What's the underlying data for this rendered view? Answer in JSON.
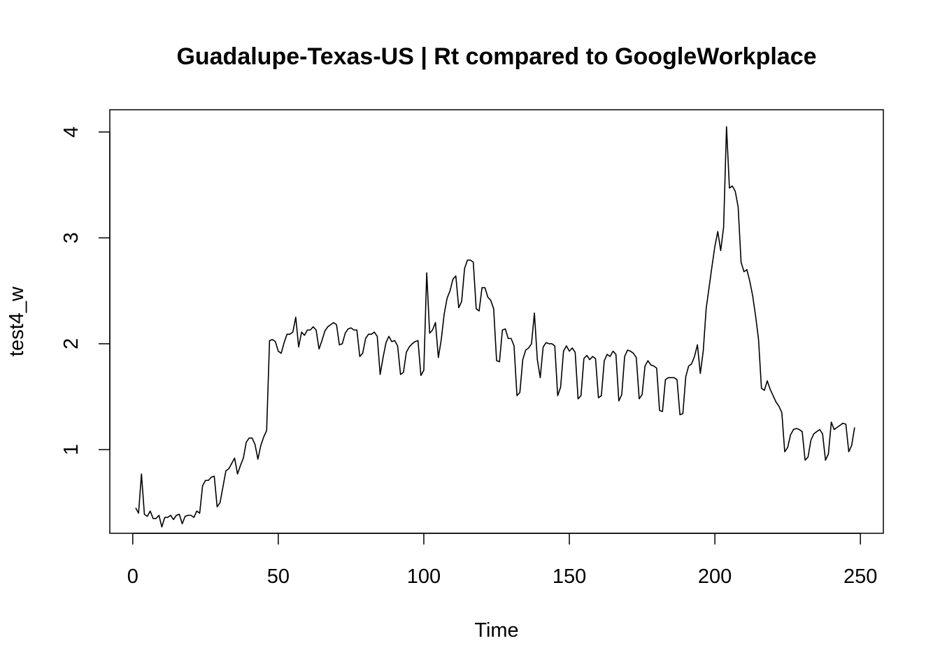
{
  "chart_data": {
    "type": "line",
    "title": "Guadalupe-Texas-US | Rt compared to GoogleWorkplace",
    "xlabel": "Time",
    "ylabel": "test4_w",
    "xlim": [
      -7.88,
      257.88
    ],
    "ylim": [
      0.21,
      4.21
    ],
    "xticks": [
      0,
      50,
      100,
      150,
      200,
      250
    ],
    "yticks": [
      1,
      2,
      3,
      4
    ],
    "xtick_labels": [
      "0",
      "50",
      "100",
      "150",
      "200",
      "250"
    ],
    "ytick_labels": [
      "1",
      "2",
      "3",
      "4"
    ],
    "grid": false,
    "legend": "none",
    "line_color": "#000000",
    "series": [
      {
        "x": [
          1,
          2,
          3,
          4,
          5,
          6,
          7,
          8,
          9,
          10,
          11,
          12,
          13,
          14,
          15,
          16,
          17,
          18,
          19,
          20,
          21,
          22,
          23,
          24,
          25,
          26,
          27,
          28,
          29,
          30,
          31,
          32,
          33,
          34,
          35,
          36,
          37,
          38,
          39,
          40,
          41,
          42,
          43,
          44,
          45,
          46,
          47,
          48,
          49,
          50,
          51,
          52,
          53,
          54,
          55,
          56,
          57,
          58,
          59,
          60,
          61,
          62,
          63,
          64,
          65,
          66,
          67,
          68,
          69,
          70,
          71,
          72,
          73,
          74,
          75,
          76,
          77,
          78,
          79,
          80,
          81,
          82,
          83,
          84,
          85,
          86,
          87,
          88,
          89,
          90,
          91,
          92,
          93,
          94,
          95,
          96,
          97,
          98,
          99,
          100,
          101,
          102,
          103,
          104,
          105,
          106,
          107,
          108,
          109,
          110,
          111,
          112,
          113,
          114,
          115,
          116,
          117,
          118,
          119,
          120,
          121,
          122,
          123,
          124,
          125,
          126,
          127,
          128,
          129,
          130,
          131,
          132,
          133,
          134,
          135,
          136,
          137,
          138,
          139,
          140,
          141,
          142,
          143,
          144,
          145,
          146,
          147,
          148,
          149,
          150,
          151,
          152,
          153,
          154,
          155,
          156,
          157,
          158,
          159,
          160,
          161,
          162,
          163,
          164,
          165,
          166,
          167,
          168,
          169,
          170,
          171,
          172,
          173,
          174,
          175,
          176,
          177,
          178,
          179,
          180,
          181,
          182,
          183,
          184,
          185,
          186,
          187,
          188,
          189,
          190,
          191,
          192,
          193,
          194,
          195,
          196,
          197,
          198,
          199,
          200,
          201,
          202,
          203,
          204,
          205,
          206,
          207,
          208,
          209,
          210,
          211,
          212,
          213,
          214,
          215,
          216,
          217,
          218,
          219,
          220,
          221,
          222,
          223,
          224,
          225,
          226,
          227,
          228,
          229,
          230,
          231,
          232,
          233,
          234,
          235,
          236,
          237,
          238,
          239,
          240,
          241,
          242,
          243,
          244,
          245,
          246,
          247,
          248
        ],
        "y": [
          0.45,
          0.4,
          0.77,
          0.39,
          0.37,
          0.42,
          0.35,
          0.35,
          0.38,
          0.27,
          0.36,
          0.36,
          0.38,
          0.34,
          0.38,
          0.39,
          0.3,
          0.37,
          0.38,
          0.38,
          0.36,
          0.42,
          0.4,
          0.66,
          0.71,
          0.71,
          0.74,
          0.75,
          0.46,
          0.5,
          0.65,
          0.8,
          0.82,
          0.87,
          0.92,
          0.77,
          0.85,
          0.92,
          1.07,
          1.11,
          1.11,
          1.05,
          0.91,
          1.04,
          1.12,
          1.18,
          2.03,
          2.04,
          2.02,
          1.93,
          1.91,
          2.01,
          2.09,
          2.09,
          2.11,
          2.25,
          1.97,
          2.11,
          2.08,
          2.13,
          2.13,
          2.16,
          2.13,
          1.95,
          2.03,
          2.12,
          2.16,
          2.18,
          2.2,
          2.18,
          1.99,
          2.0,
          2.1,
          2.14,
          2.15,
          2.13,
          2.13,
          1.88,
          1.91,
          2.05,
          2.09,
          2.09,
          2.11,
          2.07,
          1.71,
          1.87,
          2.01,
          2.07,
          2.02,
          2.03,
          1.98,
          1.71,
          1.73,
          1.92,
          1.97,
          2.0,
          2.02,
          2.03,
          1.7,
          1.75,
          2.67,
          2.1,
          2.13,
          2.2,
          1.87,
          2.04,
          2.28,
          2.43,
          2.5,
          2.61,
          2.64,
          2.34,
          2.4,
          2.71,
          2.79,
          2.79,
          2.77,
          2.33,
          2.31,
          2.53,
          2.53,
          2.44,
          2.41,
          2.33,
          1.84,
          1.83,
          2.13,
          2.14,
          2.05,
          2.05,
          1.98,
          1.51,
          1.54,
          1.85,
          1.94,
          1.96,
          2.0,
          2.29,
          1.85,
          1.68,
          1.97,
          2.01,
          2.0,
          2.0,
          1.98,
          1.51,
          1.59,
          1.93,
          1.98,
          1.93,
          1.96,
          1.92,
          1.48,
          1.51,
          1.86,
          1.89,
          1.85,
          1.88,
          1.86,
          1.49,
          1.51,
          1.84,
          1.9,
          1.88,
          1.93,
          1.9,
          1.46,
          1.52,
          1.88,
          1.94,
          1.93,
          1.91,
          1.87,
          1.48,
          1.52,
          1.79,
          1.84,
          1.8,
          1.79,
          1.77,
          1.37,
          1.36,
          1.66,
          1.68,
          1.68,
          1.68,
          1.66,
          1.33,
          1.34,
          1.69,
          1.79,
          1.81,
          1.88,
          1.99,
          1.72,
          1.93,
          2.33,
          2.53,
          2.73,
          2.92,
          3.06,
          2.88,
          3.1,
          4.05,
          3.47,
          3.49,
          3.44,
          3.29,
          2.77,
          2.68,
          2.7,
          2.59,
          2.45,
          2.26,
          2.04,
          1.58,
          1.56,
          1.65,
          1.57,
          1.51,
          1.45,
          1.41,
          1.35,
          0.98,
          1.02,
          1.14,
          1.19,
          1.2,
          1.19,
          1.17,
          0.9,
          0.93,
          1.09,
          1.15,
          1.17,
          1.19,
          1.15,
          0.9,
          0.96,
          1.26,
          1.19,
          1.21,
          1.23,
          1.25,
          1.24,
          0.98,
          1.04,
          1.21
        ]
      }
    ]
  }
}
